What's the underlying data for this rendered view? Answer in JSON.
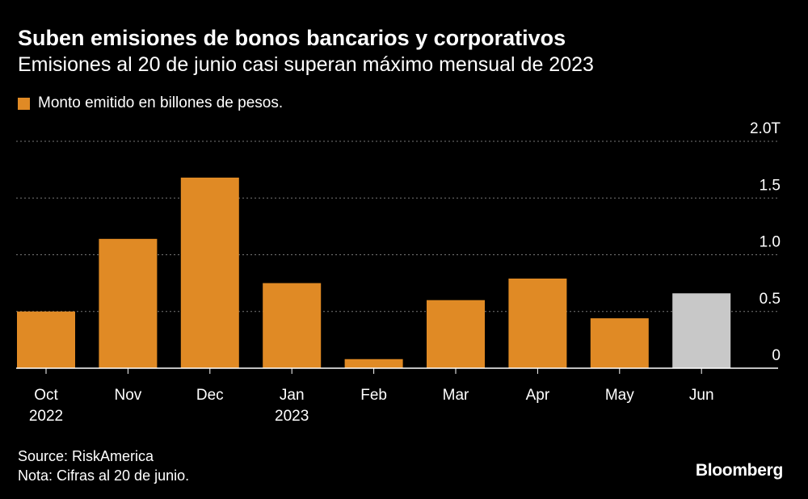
{
  "title": "Suben emisiones de bonos bancarios y corporativos",
  "subtitle": "Emisiones al 20 de junio casi superan máximo mensual de 2023",
  "legend": {
    "label": "Monto emitido en billones de pesos.",
    "color": "#e08a25"
  },
  "footer": {
    "source": "Source: RiskAmerica",
    "note": "Nota: Cifras al 20 de junio."
  },
  "logo": "Bloomberg",
  "colors": {
    "background": "#000000",
    "bar": "#e08a25",
    "bar_partial": "#c8c8c8",
    "grid": "#777777",
    "text": "#ffffff"
  },
  "chart_data": {
    "type": "bar",
    "categories": [
      "Oct 2022",
      "Nov",
      "Dec",
      "Jan 2023",
      "Feb",
      "Mar",
      "Apr",
      "May",
      "Jun"
    ],
    "category_labels": [
      [
        "Oct",
        "2022"
      ],
      [
        "Nov"
      ],
      [
        "Dec"
      ],
      [
        "Jan",
        "2023"
      ],
      [
        "Feb"
      ],
      [
        "Mar"
      ],
      [
        "Apr"
      ],
      [
        "May"
      ],
      [
        "Jun"
      ]
    ],
    "values": [
      0.5,
      1.14,
      1.68,
      0.75,
      0.08,
      0.6,
      0.79,
      0.44,
      0.66
    ],
    "highlight": [
      false,
      false,
      false,
      false,
      false,
      false,
      false,
      false,
      true
    ],
    "ylim": [
      0,
      2.0
    ],
    "yticks": [
      0,
      0.5,
      1.0,
      1.5,
      2.0
    ],
    "ytick_labels": [
      "0",
      "0.5",
      "1.0",
      "1.5",
      "2.0T"
    ],
    "grid": true,
    "legend_position": "top-left",
    "xlabel": "",
    "ylabel": ""
  }
}
